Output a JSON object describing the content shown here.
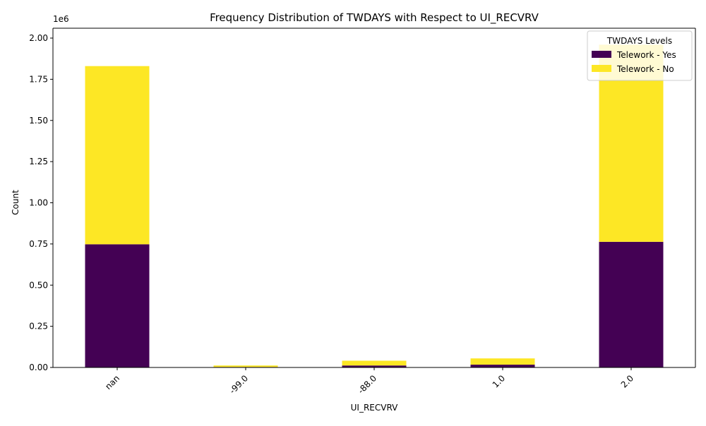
{
  "chart_data": {
    "type": "bar",
    "stacked": true,
    "title": "Frequency Distribution of TWDAYS with Respect to UI_RECVRV",
    "xlabel": "UI_RECVRV",
    "ylabel": "Count",
    "y_offset_label": "1e6",
    "categories": [
      "nan",
      "-99.0",
      "-88.0",
      "1.0",
      "2.0"
    ],
    "series": [
      {
        "name": "Telework - Yes",
        "color": "#440154",
        "values": [
          748000,
          3000,
          12000,
          17000,
          763000
        ]
      },
      {
        "name": "Telework - No",
        "color": "#fde725",
        "values": [
          1082000,
          9000,
          29000,
          38000,
          1197000
        ]
      }
    ],
    "ylim": [
      0,
      2060000
    ],
    "yticks": [
      0,
      250000,
      500000,
      750000,
      1000000,
      1250000,
      1500000,
      1750000,
      2000000
    ],
    "ytick_labels": [
      "0.00",
      "0.25",
      "0.50",
      "0.75",
      "1.00",
      "1.25",
      "1.50",
      "1.75",
      "2.00"
    ],
    "legend": {
      "title": "TWDAYS Levels",
      "placement": "top-right"
    },
    "grid": false
  }
}
